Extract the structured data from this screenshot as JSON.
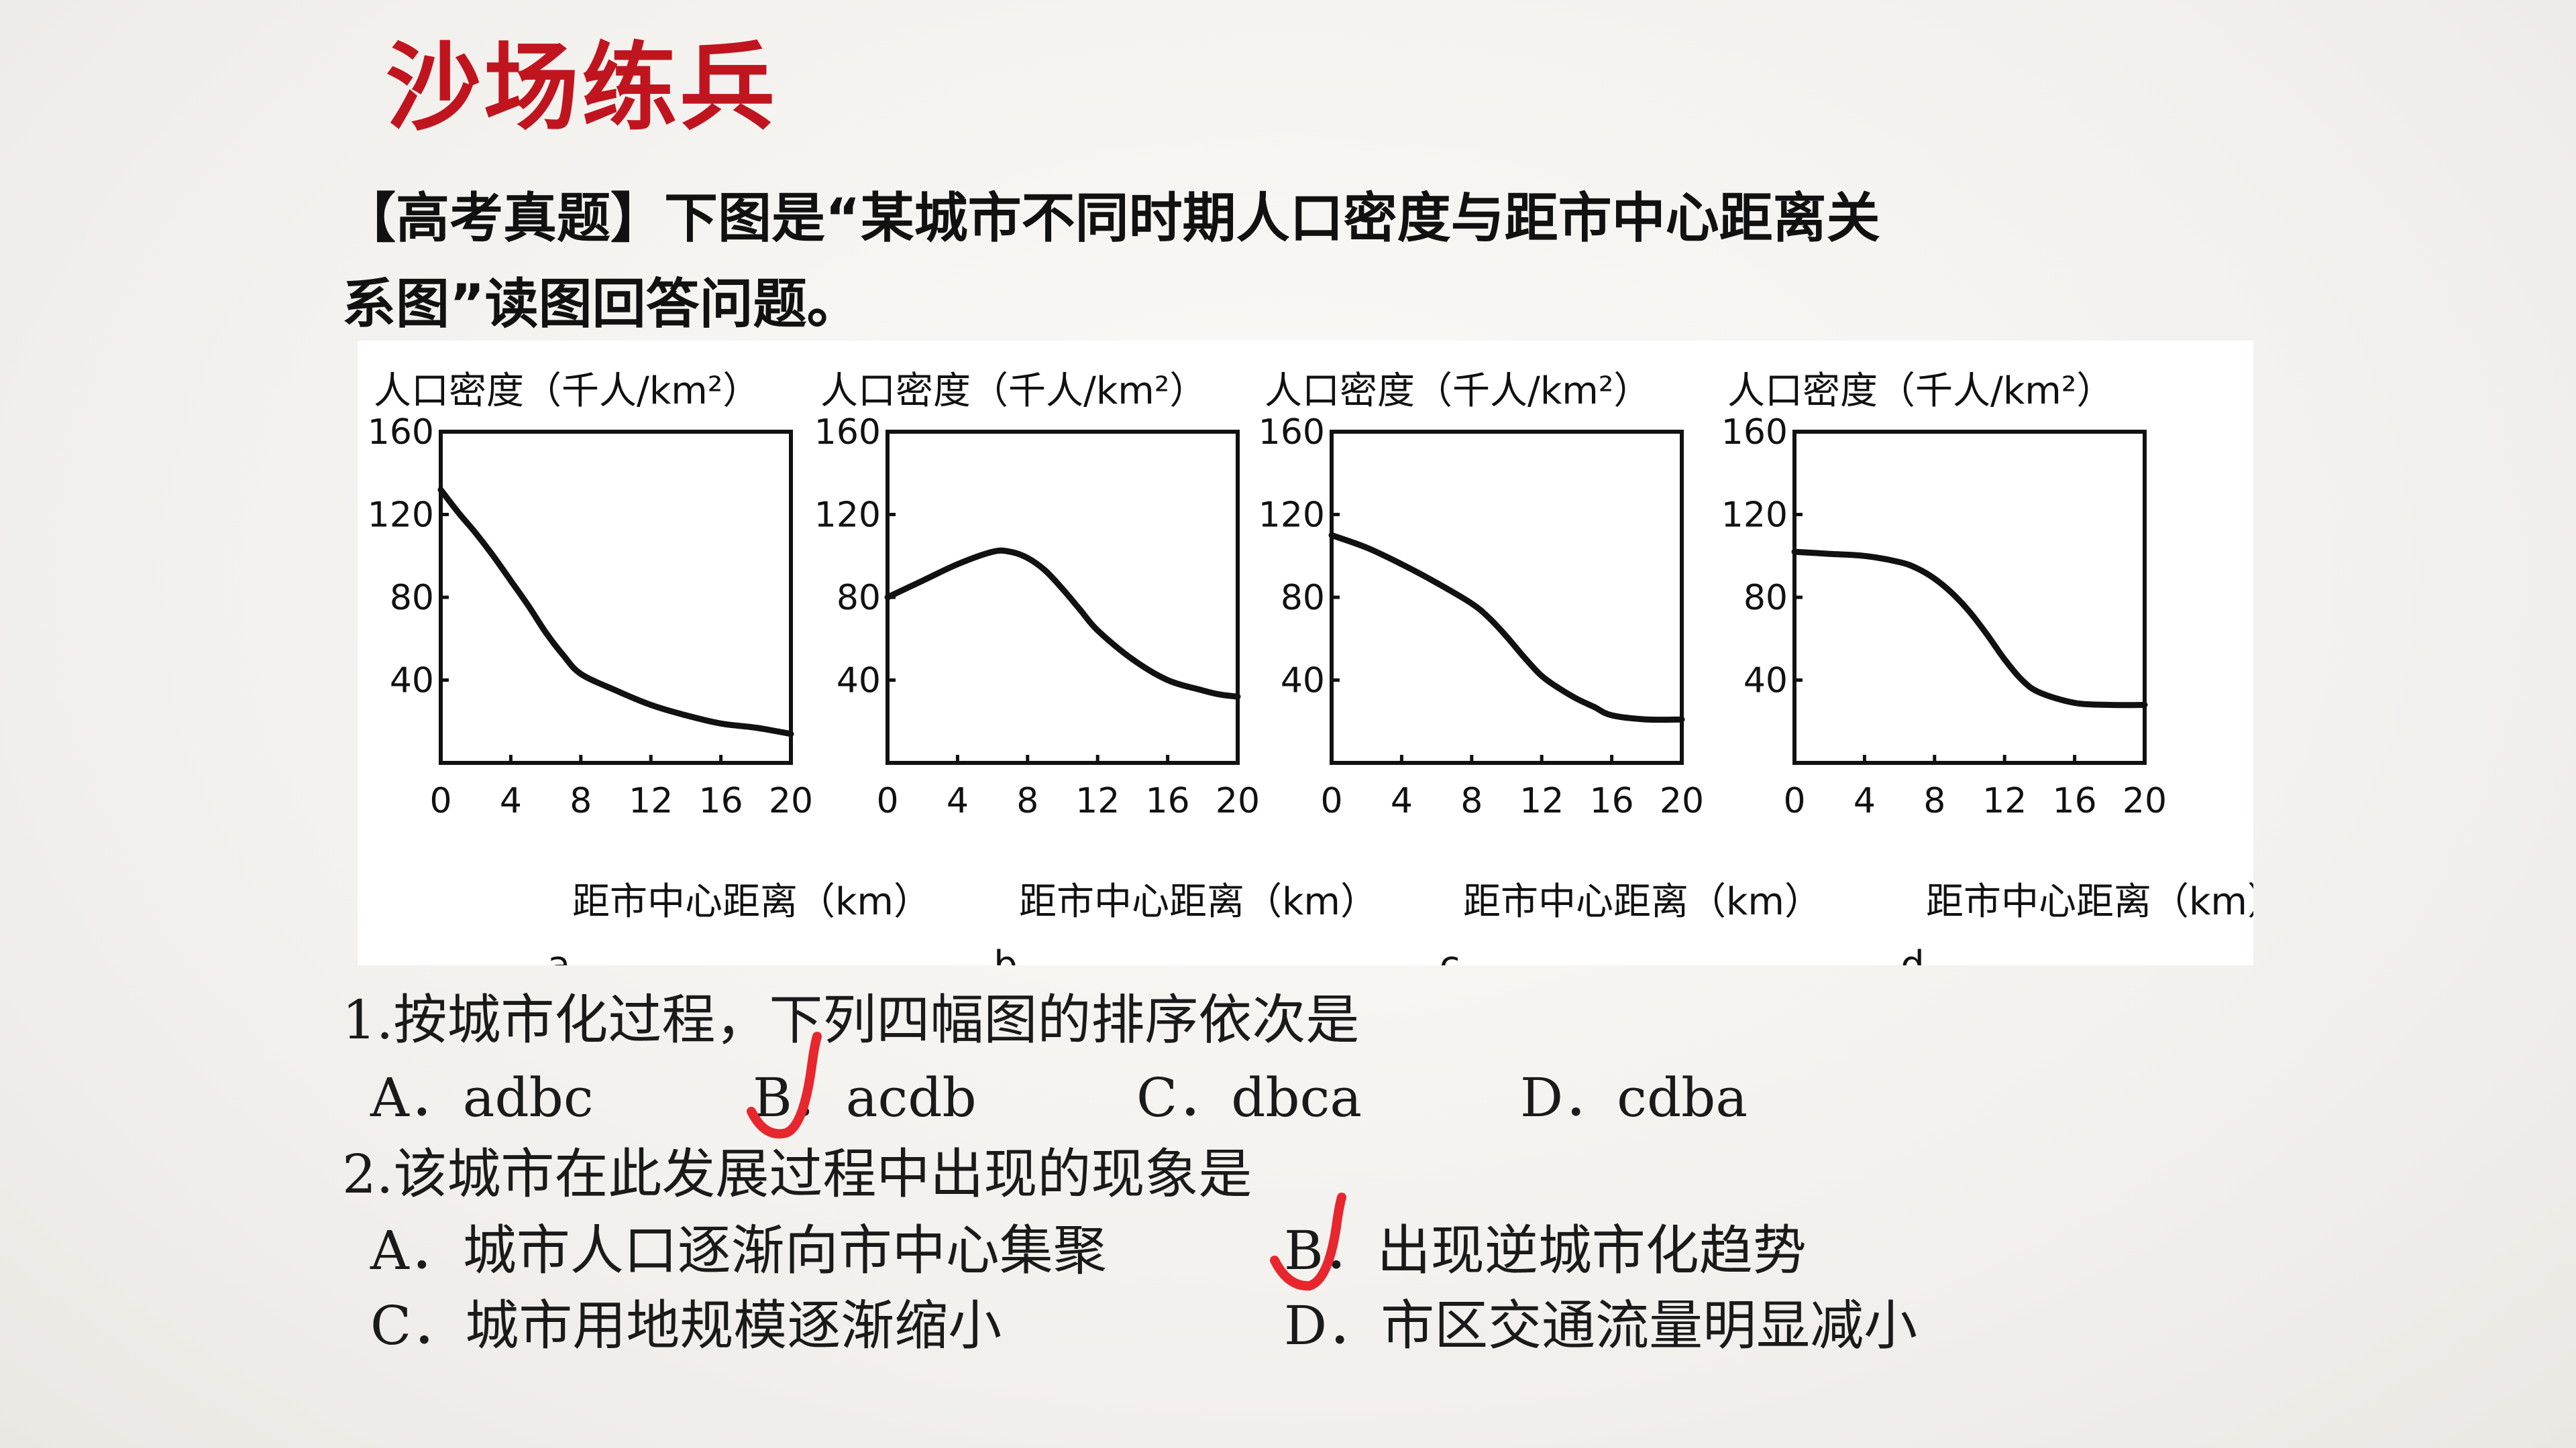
{
  "title": "沙场练兵",
  "intro": {
    "line1": "【高考真题】下图是“某城市不同时期人口密度与距市中心距离关",
    "line2": "系图”读图回答问题。"
  },
  "chart_data": [
    {
      "type": "line",
      "panel_label": "a",
      "ylabel": "人口密度（千人/km²）",
      "xlabel": "距市中心距离（km）",
      "xlim": [
        0,
        20
      ],
      "ylim": [
        0,
        160
      ],
      "x_ticks": [
        0,
        4,
        8,
        12,
        16,
        20
      ],
      "y_ticks": [
        40,
        80,
        120,
        160
      ],
      "x": [
        0,
        1,
        2,
        3,
        4,
        5,
        6,
        7,
        8,
        10,
        12,
        14,
        16,
        18,
        20
      ],
      "y": [
        132,
        121,
        111,
        100,
        88,
        76,
        63,
        52,
        43,
        35,
        28,
        23,
        19,
        17,
        14
      ]
    },
    {
      "type": "line",
      "panel_label": "b",
      "ylabel": "人口密度（千人/km²）",
      "xlabel": "距市中心距离（km）",
      "xlim": [
        0,
        20
      ],
      "ylim": [
        0,
        160
      ],
      "x_ticks": [
        0,
        4,
        8,
        12,
        16,
        20
      ],
      "y_ticks": [
        40,
        80,
        120,
        160
      ],
      "x": [
        0,
        2,
        4,
        6,
        7,
        8,
        9,
        10,
        11,
        12,
        14,
        16,
        18,
        19,
        20
      ],
      "y": [
        80,
        88,
        96,
        102,
        102,
        99,
        93,
        84,
        74,
        64,
        50,
        40,
        35,
        33,
        32
      ]
    },
    {
      "type": "line",
      "panel_label": "c",
      "ylabel": "人口密度（千人/km²）",
      "xlabel": "距市中心距离（km）",
      "xlim": [
        0,
        20
      ],
      "ylim": [
        0,
        160
      ],
      "x_ticks": [
        0,
        4,
        8,
        12,
        16,
        20
      ],
      "y_ticks": [
        40,
        80,
        120,
        160
      ],
      "x": [
        0,
        2,
        4,
        6,
        8,
        9,
        10,
        11,
        12,
        13,
        14,
        15,
        16,
        18,
        20
      ],
      "y": [
        110,
        104,
        96,
        87,
        77,
        70,
        61,
        51,
        42,
        36,
        31,
        27,
        23,
        21,
        21
      ]
    },
    {
      "type": "line",
      "panel_label": "d",
      "ylabel": "人口密度（千人/km²）",
      "xlabel": "距市中心距离（km）",
      "xlim": [
        0,
        20
      ],
      "ylim": [
        0,
        160
      ],
      "x_ticks": [
        0,
        4,
        8,
        12,
        16,
        20
      ],
      "y_ticks": [
        40,
        80,
        120,
        160
      ],
      "x": [
        0,
        2,
        4,
        6,
        7,
        8,
        9,
        10,
        11,
        12,
        13,
        14,
        16,
        18,
        20
      ],
      "y": [
        102,
        101,
        100,
        97,
        94,
        89,
        82,
        73,
        62,
        50,
        40,
        34,
        29,
        28,
        28
      ]
    }
  ],
  "questions": {
    "q1": {
      "stem": "1.按城市化过程，下列四幅图的排序依次是",
      "options": [
        "A．adbc",
        "B．acdb",
        "C．dbca",
        "D．cdba"
      ]
    },
    "q2": {
      "stem": "2.该城市在此发展过程中出现的现象是",
      "options": [
        "A．城市人口逐渐向市中心集聚",
        "B．出现逆城市化趋势",
        "C．城市用地规模逐渐缩小",
        "D．市区交通流量明显减小"
      ]
    }
  },
  "colors": {
    "title": "#c0151f",
    "check_mark": "#e8262d",
    "text": "#111111"
  },
  "check_marks": {
    "q1_answer": "B",
    "q2_answer": "B"
  }
}
